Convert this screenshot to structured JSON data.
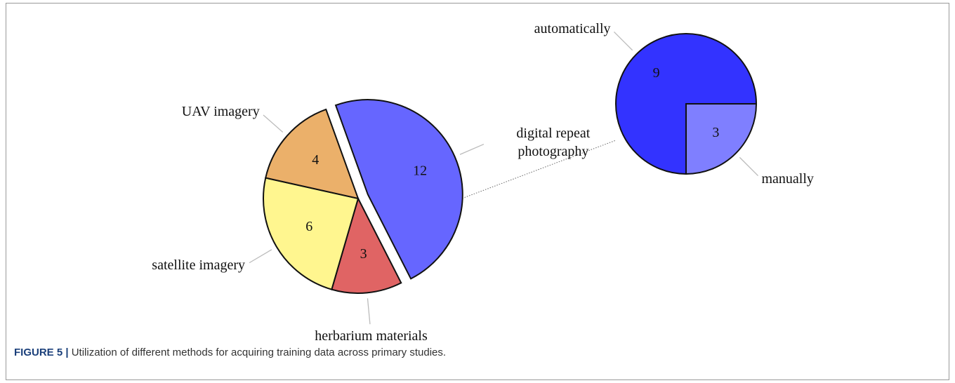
{
  "chart_data": [
    {
      "type": "pie",
      "categories": [
        "digital repeat photography",
        "herbarium materials",
        "satellite imagery",
        "UAV imagery"
      ],
      "values": [
        12,
        3,
        6,
        4
      ],
      "colors": [
        "#6666ff",
        "#e06464",
        "#fff68f",
        "#ebb06a"
      ]
    },
    {
      "type": "pie",
      "categories": [
        "automatically",
        "manually"
      ],
      "values": [
        9,
        3
      ],
      "colors": [
        "#3333ff",
        "#7f7fff"
      ]
    }
  ],
  "caption": {
    "label": "FIGURE 5 |",
    "text": "Utilization of different methods for acquiring training data across primary studies."
  }
}
